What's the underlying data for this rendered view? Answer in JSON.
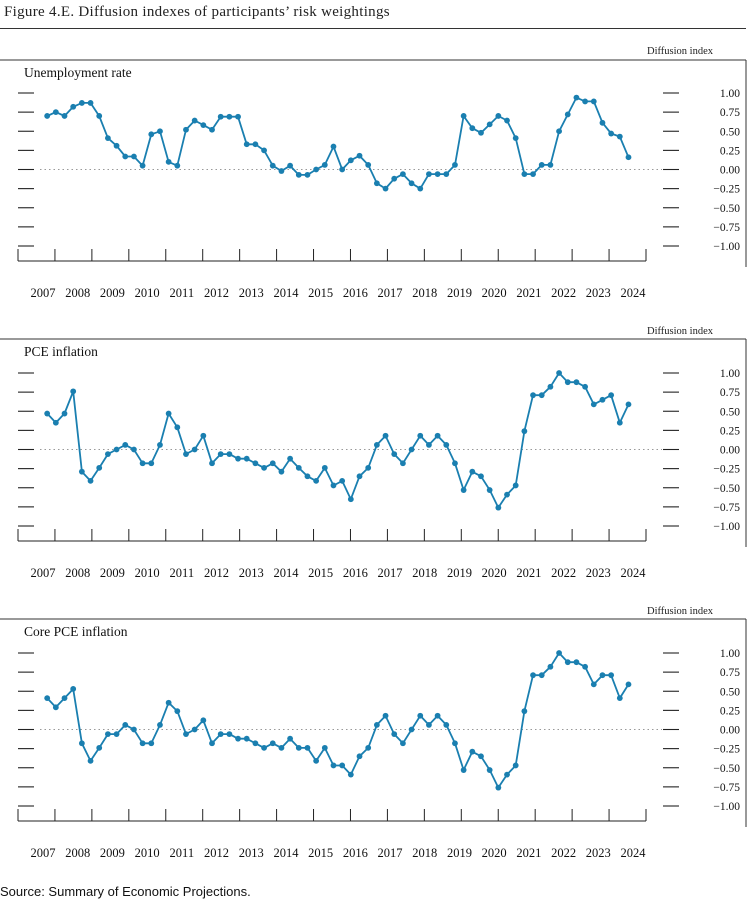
{
  "figure": {
    "title": "Figure 4.E. Diffusion indexes of participants’ risk weightings",
    "source": "Source: Summary of Economic Projections."
  },
  "colors": {
    "series": "#1a7fb0",
    "axis": "#222222",
    "zero_line": "#999999"
  },
  "chart_data": [
    {
      "type": "line",
      "title": "Unemployment rate",
      "ylabel": "Diffusion index",
      "x_ticks": [
        "2007",
        "2008",
        "2009",
        "2010",
        "2011",
        "2012",
        "2013",
        "2014",
        "2015",
        "2016",
        "2017",
        "2018",
        "2019",
        "2020",
        "2021",
        "2022",
        "2023",
        "2024"
      ],
      "y_ticks": [
        "1.00",
        "0.75",
        "0.50",
        "0.25",
        "0.00",
        "−0.25",
        "−0.50",
        "−0.75",
        "−1.00"
      ],
      "ylim": [
        -1,
        1
      ],
      "xlim": [
        2007,
        2024
      ],
      "zero_line": true,
      "series": [
        {
          "x": [
            2007.12,
            2007.37,
            2007.62,
            2007.87,
            2008.12,
            2008.37,
            2008.62,
            2008.87,
            2009.12,
            2009.37,
            2009.62,
            2009.87,
            2010.12,
            2010.37,
            2010.62,
            2010.87,
            2011.12,
            2011.37,
            2011.62,
            2011.87,
            2012.12,
            2012.37,
            2012.62,
            2012.87,
            2013.12,
            2013.37,
            2013.62,
            2013.87,
            2014.12,
            2014.37,
            2014.62,
            2014.87,
            2015.12,
            2015.37,
            2015.62,
            2015.87,
            2016.12,
            2016.37,
            2016.62,
            2016.87,
            2017.12,
            2017.37,
            2017.62,
            2017.87,
            2018.12,
            2018.37,
            2018.62,
            2018.87,
            2019.12,
            2019.37,
            2019.62,
            2019.87,
            2020.12,
            2020.37,
            2020.62,
            2020.87,
            2021.12,
            2021.37,
            2021.62,
            2021.87,
            2022.12,
            2022.37,
            2022.62,
            2022.87,
            2023.12,
            2023.37,
            2023.62,
            2023.87
          ],
          "values": [
            0.7,
            0.75,
            0.7,
            0.82,
            0.87,
            0.87,
            0.7,
            0.41,
            0.31,
            0.17,
            0.17,
            0.05,
            0.46,
            0.5,
            0.1,
            0.05,
            0.52,
            0.64,
            0.58,
            0.52,
            0.69,
            0.69,
            0.69,
            0.33,
            0.33,
            0.25,
            0.05,
            -0.02,
            0.05,
            -0.07,
            -0.07,
            0.0,
            0.06,
            0.3,
            0.0,
            0.12,
            0.18,
            0.06,
            -0.18,
            -0.25,
            -0.12,
            -0.06,
            -0.18,
            -0.25,
            -0.06,
            -0.06,
            -0.06,
            0.06,
            0.7,
            0.54,
            0.48,
            0.59,
            0.7,
            0.64,
            0.41,
            -0.06,
            -0.06,
            0.06,
            0.06,
            0.5,
            0.72,
            0.94,
            0.89,
            0.89,
            0.61,
            0.47,
            0.43,
            0.16
          ]
        }
      ]
    },
    {
      "type": "line",
      "title": "PCE inflation",
      "ylabel": "Diffusion index",
      "x_ticks": [
        "2007",
        "2008",
        "2009",
        "2010",
        "2011",
        "2012",
        "2013",
        "2014",
        "2015",
        "2016",
        "2017",
        "2018",
        "2019",
        "2020",
        "2021",
        "2022",
        "2023",
        "2024"
      ],
      "y_ticks": [
        "1.00",
        "0.75",
        "0.50",
        "0.25",
        "0.00",
        "−0.25",
        "−0.50",
        "−0.75",
        "−1.00"
      ],
      "ylim": [
        -1,
        1
      ],
      "xlim": [
        2007,
        2024
      ],
      "zero_line": true,
      "series": [
        {
          "x": [
            2007.12,
            2007.37,
            2007.62,
            2007.87,
            2008.12,
            2008.37,
            2008.62,
            2008.87,
            2009.12,
            2009.37,
            2009.62,
            2009.87,
            2010.12,
            2010.37,
            2010.62,
            2010.87,
            2011.12,
            2011.37,
            2011.62,
            2011.87,
            2012.12,
            2012.37,
            2012.62,
            2012.87,
            2013.12,
            2013.37,
            2013.62,
            2013.87,
            2014.12,
            2014.37,
            2014.62,
            2014.87,
            2015.12,
            2015.37,
            2015.62,
            2015.87,
            2016.12,
            2016.37,
            2016.62,
            2016.87,
            2017.12,
            2017.37,
            2017.62,
            2017.87,
            2018.12,
            2018.37,
            2018.62,
            2018.87,
            2019.12,
            2019.37,
            2019.62,
            2019.87,
            2020.12,
            2020.37,
            2020.62,
            2020.87,
            2021.12,
            2021.37,
            2021.62,
            2021.87,
            2022.12,
            2022.37,
            2022.62,
            2022.87,
            2023.12,
            2023.37,
            2023.62,
            2023.87
          ],
          "values": [
            0.47,
            0.35,
            0.47,
            0.76,
            -0.29,
            -0.41,
            -0.24,
            -0.06,
            0.0,
            0.06,
            0.0,
            -0.18,
            -0.18,
            0.06,
            0.47,
            0.29,
            -0.06,
            0.0,
            0.18,
            -0.18,
            -0.06,
            -0.06,
            -0.12,
            -0.12,
            -0.18,
            -0.24,
            -0.18,
            -0.29,
            -0.12,
            -0.24,
            -0.35,
            -0.41,
            -0.24,
            -0.47,
            -0.41,
            -0.65,
            -0.35,
            -0.24,
            0.06,
            0.18,
            -0.06,
            -0.18,
            0.0,
            0.18,
            0.06,
            0.18,
            0.06,
            -0.18,
            -0.53,
            -0.29,
            -0.35,
            -0.53,
            -0.76,
            -0.59,
            -0.47,
            0.24,
            0.71,
            0.71,
            0.82,
            1.0,
            0.88,
            0.88,
            0.82,
            0.59,
            0.65,
            0.71,
            0.35,
            0.59
          ]
        }
      ]
    },
    {
      "type": "line",
      "title": "Core PCE inflation",
      "ylabel": "Diffusion index",
      "x_ticks": [
        "2007",
        "2008",
        "2009",
        "2010",
        "2011",
        "2012",
        "2013",
        "2014",
        "2015",
        "2016",
        "2017",
        "2018",
        "2019",
        "2020",
        "2021",
        "2022",
        "2023",
        "2024"
      ],
      "y_ticks": [
        "1.00",
        "0.75",
        "0.50",
        "0.25",
        "0.00",
        "−0.25",
        "−0.50",
        "−0.75",
        "−1.00"
      ],
      "ylim": [
        -1,
        1
      ],
      "xlim": [
        2007,
        2024
      ],
      "zero_line": true,
      "series": [
        {
          "x": [
            2007.12,
            2007.37,
            2007.62,
            2007.87,
            2008.12,
            2008.37,
            2008.62,
            2008.87,
            2009.12,
            2009.37,
            2009.62,
            2009.87,
            2010.12,
            2010.37,
            2010.62,
            2010.87,
            2011.12,
            2011.37,
            2011.62,
            2011.87,
            2012.12,
            2012.37,
            2012.62,
            2012.87,
            2013.12,
            2013.37,
            2013.62,
            2013.87,
            2014.12,
            2014.37,
            2014.62,
            2014.87,
            2015.12,
            2015.37,
            2015.62,
            2015.87,
            2016.12,
            2016.37,
            2016.62,
            2016.87,
            2017.12,
            2017.37,
            2017.62,
            2017.87,
            2018.12,
            2018.37,
            2018.62,
            2018.87,
            2019.12,
            2019.37,
            2019.62,
            2019.87,
            2020.12,
            2020.37,
            2020.62,
            2020.87,
            2021.12,
            2021.37,
            2021.62,
            2021.87,
            2022.12,
            2022.37,
            2022.62,
            2022.87,
            2023.12,
            2023.37,
            2023.62,
            2023.87
          ],
          "values": [
            0.41,
            0.29,
            0.41,
            0.53,
            -0.18,
            -0.41,
            -0.24,
            -0.06,
            -0.06,
            0.06,
            0.0,
            -0.18,
            -0.18,
            0.06,
            0.35,
            0.24,
            -0.06,
            0.0,
            0.12,
            -0.18,
            -0.06,
            -0.06,
            -0.12,
            -0.12,
            -0.18,
            -0.24,
            -0.18,
            -0.24,
            -0.12,
            -0.24,
            -0.24,
            -0.41,
            -0.24,
            -0.47,
            -0.47,
            -0.59,
            -0.35,
            -0.24,
            0.06,
            0.18,
            -0.06,
            -0.18,
            0.0,
            0.18,
            0.06,
            0.18,
            0.06,
            -0.18,
            -0.53,
            -0.29,
            -0.35,
            -0.53,
            -0.76,
            -0.59,
            -0.47,
            0.24,
            0.71,
            0.71,
            0.82,
            1.0,
            0.88,
            0.88,
            0.82,
            0.59,
            0.71,
            0.71,
            0.41,
            0.59
          ]
        }
      ]
    }
  ]
}
